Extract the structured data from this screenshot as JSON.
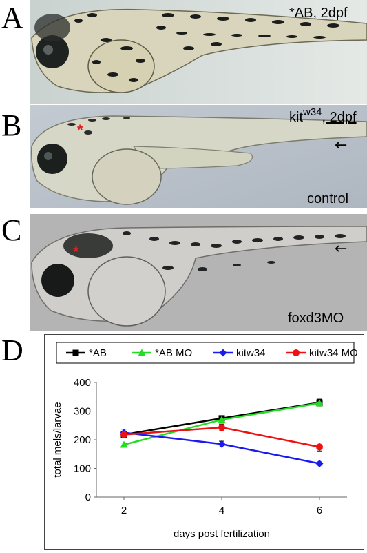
{
  "panels": {
    "a": {
      "letter": "A",
      "label": "*AB, 2dpf"
    },
    "b": {
      "letter": "B",
      "label_main": "kit",
      "label_sup": "w34",
      "label_tail": ", 2dpf",
      "label_bottom": "control",
      "marker": "*",
      "arrow": "←"
    },
    "c": {
      "letter": "C",
      "label_bottom": "foxd3MO",
      "marker": "*",
      "arrow": "←"
    },
    "d": {
      "letter": "D"
    }
  },
  "colors": {
    "ab": "#000000",
    "ab_mo": "#22dd22",
    "kitw34": "#1a1aee",
    "kitw34_mo": "#ee1111"
  },
  "chart_data": {
    "type": "line",
    "xlabel": "days post fertilization",
    "ylabel": "total mels/larvae",
    "x": [
      2,
      4,
      6
    ],
    "ylim": [
      0,
      400
    ],
    "yticks": [
      0,
      100,
      200,
      300,
      400
    ],
    "legend_position": "top",
    "series": [
      {
        "name": "*AB",
        "values": [
          218,
          275,
          330
        ],
        "errors": [
          5,
          8,
          12
        ],
        "color": "#000000",
        "marker": "square"
      },
      {
        "name": "*AB MO",
        "values": [
          183,
          270,
          328
        ],
        "errors": [
          6,
          8,
          10
        ],
        "color": "#22dd22",
        "marker": "triangle"
      },
      {
        "name": "kitw34",
        "values": [
          225,
          185,
          117
        ],
        "errors": [
          12,
          10,
          6
        ],
        "color": "#1a1aee",
        "marker": "diamond"
      },
      {
        "name": "kitw34 MO",
        "values": [
          218,
          243,
          175
        ],
        "errors": [
          8,
          12,
          14
        ],
        "color": "#ee1111",
        "marker": "circle"
      }
    ]
  }
}
